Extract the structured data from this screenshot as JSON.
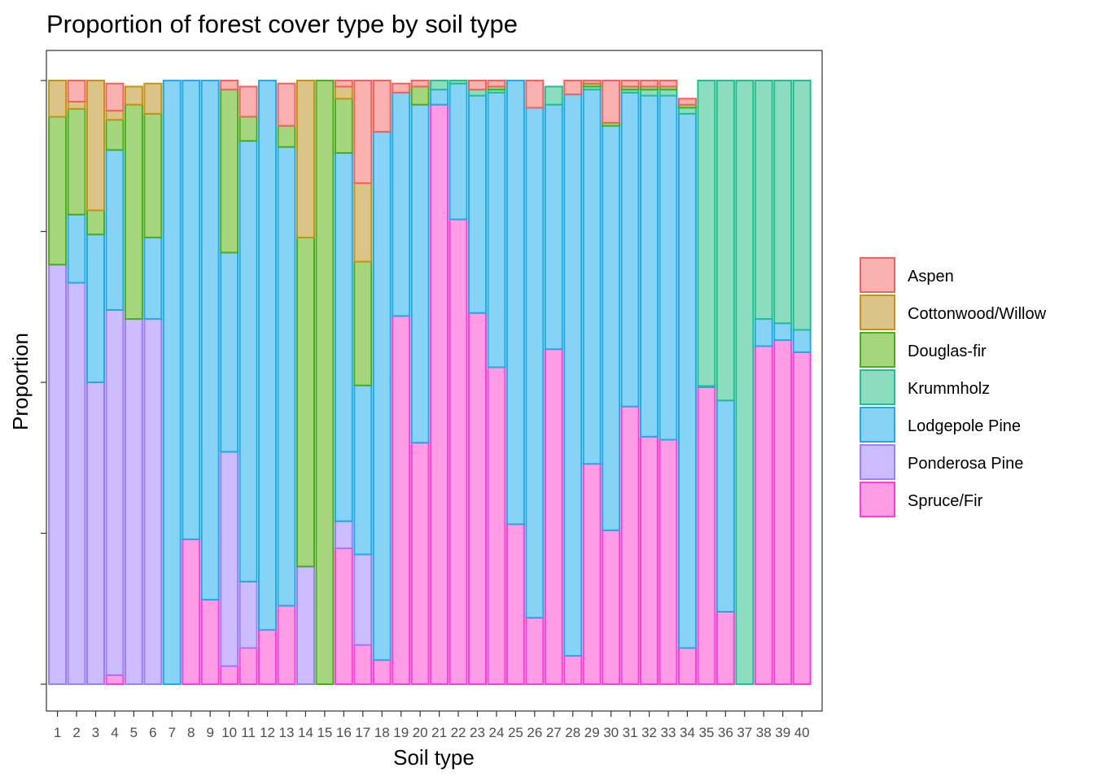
{
  "chart_data": {
    "type": "bar",
    "stacked": true,
    "normalized": true,
    "title": "Proportion of forest cover type by soil type",
    "xlabel": "Soil type",
    "ylabel": "Proportion",
    "ylim": [
      0,
      1
    ],
    "y_tick_labels_shown": false,
    "grid": false,
    "legend_position": "right",
    "categories": [
      "1",
      "2",
      "3",
      "4",
      "5",
      "6",
      "7",
      "8",
      "9",
      "10",
      "11",
      "12",
      "13",
      "14",
      "15",
      "16",
      "17",
      "18",
      "19",
      "20",
      "21",
      "22",
      "23",
      "24",
      "25",
      "26",
      "27",
      "28",
      "29",
      "30",
      "31",
      "32",
      "33",
      "34",
      "35",
      "36",
      "37",
      "38",
      "39",
      "40"
    ],
    "series": [
      {
        "name": "Spruce/Fir",
        "fill": "#ff9ce6",
        "stroke": "#ff3dd1",
        "values": [
          0,
          0,
          0,
          0.015,
          0,
          0,
          0,
          0.24,
          0.14,
          0.03,
          0.06,
          0.09,
          0.13,
          0,
          0,
          0.225,
          0.065,
          0.04,
          0.61,
          0.4,
          0.96,
          0.77,
          0.615,
          0.525,
          0.265,
          0.11,
          0.555,
          0.047,
          0.365,
          0.255,
          0.46,
          0.41,
          0.405,
          0.06,
          0.492,
          0.12,
          0,
          0.56,
          0.57,
          0.55
        ]
      },
      {
        "name": "Ponderosa Pine",
        "fill": "#cbbdff",
        "stroke": "#9b7dff",
        "values": [
          0.695,
          0.665,
          0.5,
          0.605,
          0.605,
          0.605,
          0,
          0,
          0,
          0.355,
          0.11,
          0,
          0,
          0.195,
          0,
          0.045,
          0.15,
          0,
          0,
          0,
          0,
          0,
          0,
          0,
          0,
          0,
          0,
          0,
          0,
          0,
          0,
          0,
          0,
          0,
          0,
          0,
          0,
          0,
          0,
          0
        ]
      },
      {
        "name": "Lodgepole Pine",
        "fill": "#86d3f5",
        "stroke": "#1eabe6",
        "values": [
          0,
          0.113,
          0.245,
          0.265,
          0,
          0.135,
          1,
          0.76,
          0.86,
          0.33,
          0.73,
          0.91,
          0.76,
          0,
          0,
          0.61,
          0.28,
          0.875,
          0.37,
          0.56,
          0.025,
          0.225,
          0.36,
          0.455,
          0.735,
          0.845,
          0.405,
          0.93,
          0.62,
          0.67,
          0.52,
          0.565,
          0.57,
          0.885,
          0.002,
          0.35,
          0,
          0.045,
          0.028,
          0.037
        ]
      },
      {
        "name": "Krummholz",
        "fill": "#8cdcc0",
        "stroke": "#21bf8f",
        "values": [
          0,
          0,
          0,
          0,
          0,
          0,
          0,
          0,
          0,
          0,
          0,
          0,
          0,
          0,
          0,
          0,
          0,
          0,
          0,
          0,
          0.015,
          0.005,
          0.01,
          0.005,
          0,
          0,
          0.03,
          0,
          0.005,
          0,
          0.005,
          0.01,
          0.01,
          0.01,
          0.506,
          0.53,
          1,
          0.395,
          0.402,
          0.413
        ]
      },
      {
        "name": "Douglas-fir",
        "fill": "#a5d57c",
        "stroke": "#4aad1c",
        "values": [
          0.245,
          0.175,
          0.04,
          0.05,
          0.355,
          0.205,
          0,
          0,
          0,
          0.27,
          0.04,
          0,
          0.035,
          0.545,
          1,
          0.09,
          0.205,
          0,
          0,
          0.03,
          0,
          0,
          0,
          0.005,
          0,
          0,
          0,
          0,
          0.005,
          0.005,
          0.005,
          0.005,
          0.005,
          0.005,
          0,
          0,
          0,
          0,
          0,
          0
        ]
      },
      {
        "name": "Cottonwood/Willow",
        "fill": "#dbc487",
        "stroke": "#c79316",
        "values": [
          0.06,
          0.012,
          0.215,
          0.015,
          0.03,
          0.05,
          0,
          0,
          0,
          0,
          0,
          0,
          0,
          0.26,
          0,
          0.02,
          0.13,
          0,
          0,
          0,
          0,
          0,
          0,
          0,
          0,
          0,
          0,
          0,
          0,
          0,
          0,
          0,
          0,
          0,
          0,
          0,
          0,
          0,
          0,
          0
        ]
      },
      {
        "name": "Aspen",
        "fill": "#f9b2b0",
        "stroke": "#f2615b",
        "values": [
          0,
          0.035,
          0,
          0.045,
          0,
          0,
          0,
          0,
          0,
          0.015,
          0.05,
          0,
          0.07,
          0,
          0,
          0.01,
          0.17,
          0.085,
          0.015,
          0.01,
          0,
          0,
          0.015,
          0.01,
          0,
          0.045,
          0,
          0.023,
          0.005,
          0.07,
          0.01,
          0.01,
          0.01,
          0.01,
          0,
          0,
          0,
          0,
          0,
          0
        ]
      }
    ],
    "legend_order": [
      "Aspen",
      "Cottonwood/Willow",
      "Douglas-fir",
      "Krummholz",
      "Lodgepole Pine",
      "Ponderosa Pine",
      "Spruce/Fir"
    ]
  }
}
